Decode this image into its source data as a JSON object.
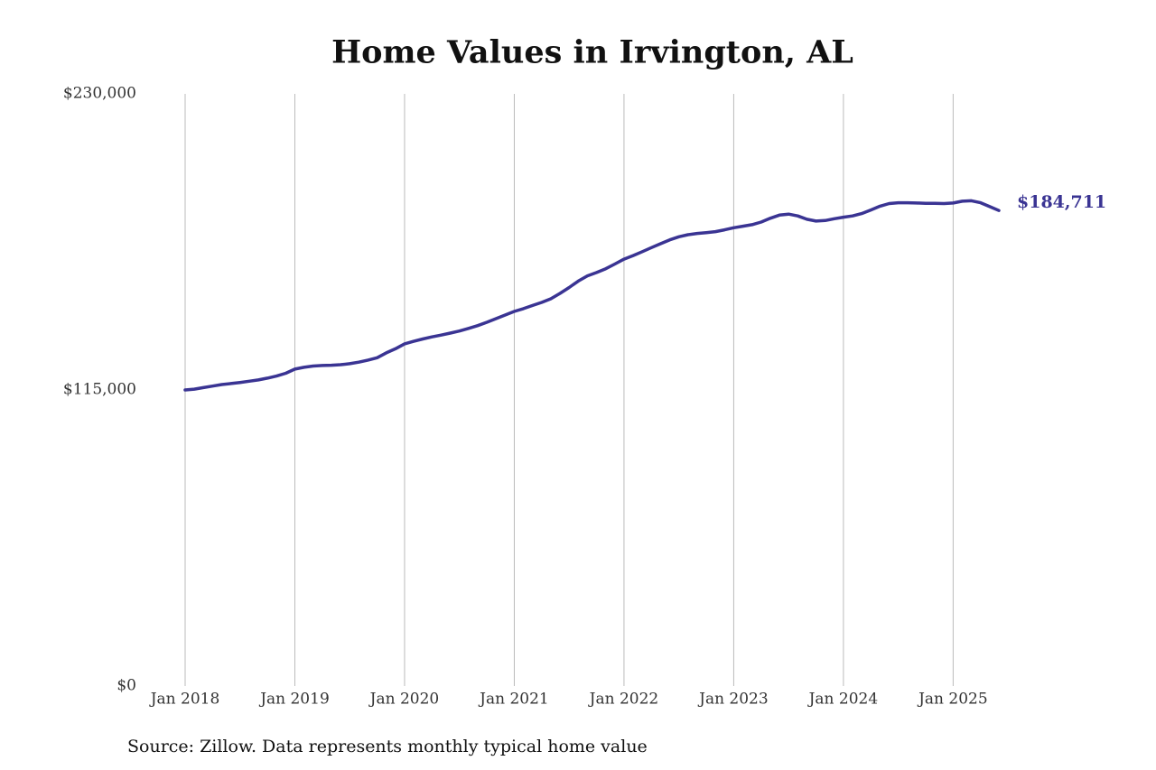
{
  "chart_data": {
    "type": "line",
    "title": "Home Values in Irvington, AL",
    "source": "Source: Zillow. Data represents monthly typical home value",
    "x": [
      "2018-01",
      "2018-02",
      "2018-03",
      "2018-04",
      "2018-05",
      "2018-06",
      "2018-07",
      "2018-08",
      "2018-09",
      "2018-10",
      "2018-11",
      "2018-12",
      "2019-01",
      "2019-02",
      "2019-03",
      "2019-04",
      "2019-05",
      "2019-06",
      "2019-07",
      "2019-08",
      "2019-09",
      "2019-10",
      "2019-11",
      "2019-12",
      "2020-01",
      "2020-02",
      "2020-03",
      "2020-04",
      "2020-05",
      "2020-06",
      "2020-07",
      "2020-08",
      "2020-09",
      "2020-10",
      "2020-11",
      "2020-12",
      "2021-01",
      "2021-02",
      "2021-03",
      "2021-04",
      "2021-05",
      "2021-06",
      "2021-07",
      "2021-08",
      "2021-09",
      "2021-10",
      "2021-11",
      "2021-12",
      "2022-01",
      "2022-02",
      "2022-03",
      "2022-04",
      "2022-05",
      "2022-06",
      "2022-07",
      "2022-08",
      "2022-09",
      "2022-10",
      "2022-11",
      "2022-12",
      "2023-01",
      "2023-02",
      "2023-03",
      "2023-04",
      "2023-05",
      "2023-06",
      "2023-07",
      "2023-08",
      "2023-09",
      "2023-10",
      "2023-11",
      "2023-12",
      "2024-01",
      "2024-02",
      "2024-03",
      "2024-04",
      "2024-05",
      "2024-06",
      "2024-07",
      "2024-08",
      "2024-09",
      "2024-10",
      "2024-11",
      "2024-12",
      "2025-01",
      "2025-02",
      "2025-03",
      "2025-04",
      "2025-05",
      "2025-06"
    ],
    "series": [
      {
        "name": "Home value",
        "color": "#3a3493",
        "values": [
          115000,
          115300,
          115900,
          116500,
          117100,
          117500,
          117900,
          118400,
          118900,
          119600,
          120400,
          121500,
          123100,
          123800,
          124300,
          124500,
          124600,
          124800,
          125200,
          125800,
          126600,
          127500,
          129400,
          131000,
          132900,
          133900,
          134800,
          135600,
          136300,
          137100,
          137900,
          138900,
          140000,
          141300,
          142700,
          144100,
          145500,
          146600,
          147800,
          149000,
          150400,
          152500,
          154800,
          157300,
          159300,
          160600,
          162100,
          163900,
          165800,
          167200,
          168700,
          170300,
          171800,
          173300,
          174500,
          175300,
          175800,
          176100,
          176500,
          177200,
          178000,
          178600,
          179200,
          180200,
          181700,
          182900,
          183300,
          182600,
          181300,
          180600,
          180800,
          181500,
          182100,
          182600,
          183500,
          184900,
          186400,
          187400,
          187700,
          187700,
          187600,
          187500,
          187500,
          187400,
          187600,
          188300,
          188500,
          187700,
          186200,
          184711
        ]
      }
    ],
    "last_value_label": "$184,711",
    "xlim": [
      "2018-01",
      "2025-06"
    ],
    "xticks": [
      {
        "value": "2018-01",
        "label": "Jan 2018"
      },
      {
        "value": "2019-01",
        "label": "Jan 2019"
      },
      {
        "value": "2020-01",
        "label": "Jan 2020"
      },
      {
        "value": "2021-01",
        "label": "Jan 2021"
      },
      {
        "value": "2022-01",
        "label": "Jan 2022"
      },
      {
        "value": "2023-01",
        "label": "Jan 2023"
      },
      {
        "value": "2024-01",
        "label": "Jan 2024"
      },
      {
        "value": "2025-01",
        "label": "Jan 2025"
      }
    ],
    "ylim": [
      0,
      230000
    ],
    "yticks": [
      {
        "value": 0,
        "label": "$0"
      },
      {
        "value": 115000,
        "label": "$115,000"
      },
      {
        "value": 230000,
        "label": "$230,000"
      }
    ],
    "grid": "x"
  }
}
